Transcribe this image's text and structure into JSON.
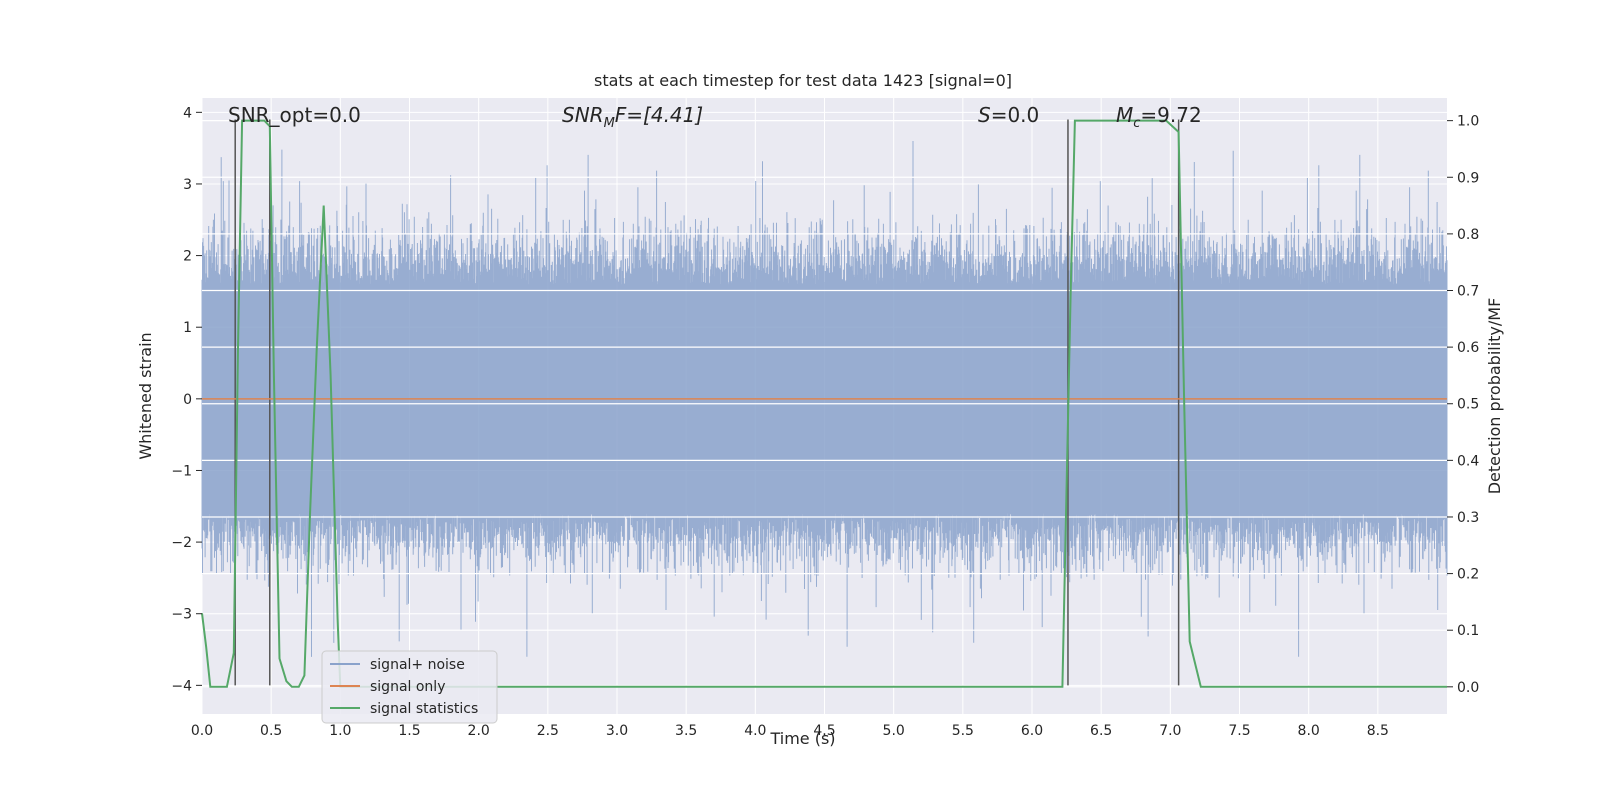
{
  "chart_data": {
    "type": "line",
    "title": "stats at each timestep for test data 1423 [signal=0]",
    "xlabel": "Time (s)",
    "ylabel": "Whitened strain",
    "ylabel_right": "Detection probability/MF",
    "xlim": [
      0.0,
      9.0
    ],
    "ylim": [
      -4.4,
      4.2
    ],
    "ylim_right": [
      -0.048,
      1.04
    ],
    "x_ticks": [
      "0.0",
      "0.5",
      "1.0",
      "1.5",
      "2.0",
      "2.5",
      "3.0",
      "3.5",
      "4.0",
      "4.5",
      "5.0",
      "5.5",
      "6.0",
      "6.5",
      "7.0",
      "7.5",
      "8.0",
      "8.5"
    ],
    "y_ticks": [
      "4",
      "3",
      "2",
      "1",
      "0",
      "−1",
      "−2",
      "−3",
      "−4"
    ],
    "y_right_ticks": [
      "1.0",
      "0.9",
      "0.8",
      "0.7",
      "0.6",
      "0.5",
      "0.4",
      "0.3",
      "0.2",
      "0.1",
      "0.0"
    ],
    "grid": true,
    "legend_position": "lower-left",
    "annotations": {
      "snr_opt": "SNR_opt=0.0",
      "snr_mf_base": "SNR",
      "snr_mf_sub": "M",
      "snr_mf_rest": "F=[4.41]",
      "s_italic": "S",
      "s_rest": "=0.0",
      "mc_italic": "M",
      "mc_sub": "c",
      "mc_rest": "=9.72"
    },
    "series": [
      {
        "name": "signal+ noise",
        "color": "#8aa2cb",
        "description_value": "noise band, approx range -3.8 to 3.9",
        "envelope_typical": 1.6
      },
      {
        "name": "signal only",
        "color": "#dd8452",
        "x": [
          0.0,
          9.0
        ],
        "y": [
          0.0,
          0.0
        ]
      },
      {
        "name": "signal statistics",
        "color": "#55a868",
        "x": [
          0.0,
          0.03,
          0.06,
          0.18,
          0.23,
          0.26,
          0.29,
          0.33,
          0.45,
          0.49,
          0.52,
          0.56,
          0.61,
          0.65,
          0.7,
          0.74,
          0.78,
          0.83,
          0.88,
          0.93,
          0.98,
          1.0,
          6.18,
          6.22,
          6.28,
          6.31,
          6.6,
          6.97,
          7.06,
          7.1,
          7.14,
          7.22,
          9.0
        ],
        "y": [
          0.13,
          0.07,
          0.0,
          0.0,
          0.06,
          0.6,
          1.0,
          1.0,
          1.0,
          0.99,
          0.55,
          0.05,
          0.01,
          0.0,
          0.0,
          0.02,
          0.3,
          0.6,
          0.85,
          0.55,
          0.12,
          0.0,
          0.0,
          0.0,
          0.7,
          1.0,
          1.0,
          1.0,
          0.98,
          0.5,
          0.08,
          0.0,
          0.0
        ]
      }
    ],
    "vertical_markers": {
      "color": "#555555",
      "x": [
        0.24,
        0.49,
        6.26,
        7.06
      ]
    },
    "background_color": "#eaeaf2",
    "legend": [
      {
        "label": "signal+ noise",
        "color": "#8aa2cb"
      },
      {
        "label": "signal only",
        "color": "#dd8452"
      },
      {
        "label": "signal statistics",
        "color": "#55a868"
      }
    ]
  }
}
